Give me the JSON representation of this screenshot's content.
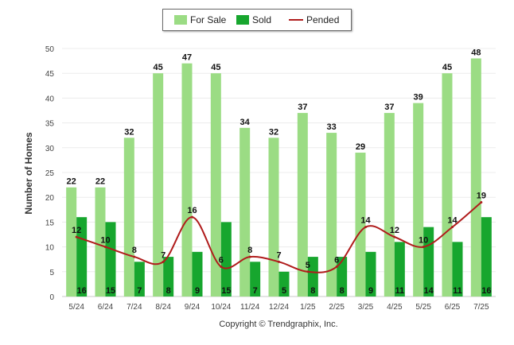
{
  "chart_data": {
    "type": "bar",
    "title": "",
    "ylabel": "Number of Homes",
    "xlabel": "",
    "ylim": [
      0,
      50
    ],
    "yticks": [
      0,
      5,
      10,
      15,
      20,
      25,
      30,
      35,
      40,
      45,
      50
    ],
    "grid": true,
    "legend_position": "top-center",
    "categories": [
      "5/24",
      "6/24",
      "7/24",
      "8/24",
      "9/24",
      "10/24",
      "11/24",
      "12/24",
      "1/25",
      "2/25",
      "3/25",
      "4/25",
      "5/25",
      "6/25",
      "7/25"
    ],
    "series": [
      {
        "name": "For Sale",
        "kind": "bar",
        "color": "#9bdc84",
        "values": [
          22,
          22,
          32,
          45,
          47,
          45,
          34,
          32,
          37,
          33,
          29,
          37,
          39,
          45,
          48
        ]
      },
      {
        "name": "Sold",
        "kind": "bar",
        "color": "#17a62e",
        "values": [
          16,
          15,
          7,
          8,
          9,
          15,
          7,
          5,
          8,
          8,
          9,
          11,
          14,
          11,
          16
        ]
      },
      {
        "name": "Pended",
        "kind": "line",
        "color": "#b01c1c",
        "values": [
          12,
          10,
          8,
          7,
          16,
          6,
          8,
          7,
          5,
          6,
          14,
          12,
          10,
          14,
          19
        ]
      }
    ]
  },
  "footer": {
    "credit": "Copyright © Trendgraphix, Inc."
  }
}
